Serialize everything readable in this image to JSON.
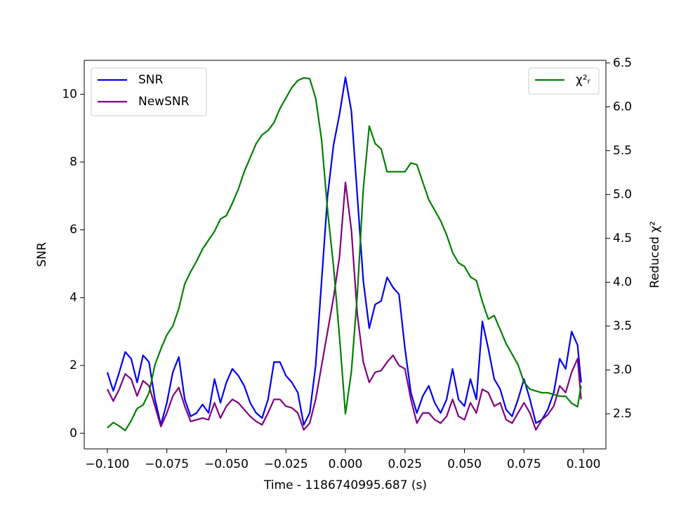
{
  "chart_data": {
    "type": "line",
    "xlabel": "Time - 1186740995.687 (s)",
    "ylabel": "SNR",
    "y2label": "Reduced χ²",
    "x": [
      -0.1,
      -0.0975,
      -0.095,
      -0.0925,
      -0.09,
      -0.0875,
      -0.085,
      -0.0825,
      -0.08,
      -0.0775,
      -0.075,
      -0.0725,
      -0.07,
      -0.0675,
      -0.065,
      -0.0625,
      -0.06,
      -0.0575,
      -0.055,
      -0.0525,
      -0.05,
      -0.0475,
      -0.045,
      -0.0425,
      -0.04,
      -0.0375,
      -0.035,
      -0.0325,
      -0.03,
      -0.0275,
      -0.025,
      -0.0225,
      -0.02,
      -0.0175,
      -0.015,
      -0.0125,
      -0.01,
      -0.0075,
      -0.005,
      -0.0025,
      0,
      0.0025,
      0.005,
      0.0075,
      0.01,
      0.0125,
      0.015,
      0.0175,
      0.02,
      0.0225,
      0.025,
      0.0275,
      0.03,
      0.0325,
      0.035,
      0.0375,
      0.04,
      0.0425,
      0.045,
      0.0475,
      0.05,
      0.0525,
      0.055,
      0.0575,
      0.06,
      0.0625,
      0.065,
      0.0675,
      0.07,
      0.0725,
      0.075,
      0.0775,
      0.08,
      0.0825,
      0.085,
      0.0875,
      0.09,
      0.0925,
      0.095,
      0.0975,
      0.099
    ],
    "series": [
      {
        "name": "SNR",
        "color": "#0000ee",
        "axis": "y",
        "values": [
          1.8,
          1.25,
          1.8,
          2.4,
          2.2,
          1.5,
          2.3,
          2.1,
          1.0,
          0.25,
          0.9,
          1.8,
          2.25,
          1.0,
          0.5,
          0.6,
          0.85,
          0.6,
          1.6,
          0.9,
          1.5,
          1.9,
          1.7,
          1.4,
          0.9,
          0.6,
          0.45,
          1.0,
          2.1,
          2.1,
          1.7,
          1.5,
          1.2,
          0.25,
          0.6,
          2.0,
          4.5,
          7.0,
          8.5,
          9.4,
          10.5,
          9.5,
          7.0,
          4.5,
          3.1,
          3.8,
          3.9,
          4.6,
          4.3,
          4.1,
          2.5,
          1.2,
          0.6,
          1.1,
          1.4,
          0.9,
          0.6,
          1.0,
          1.9,
          1.0,
          0.8,
          1.6,
          1.0,
          3.3,
          2.5,
          1.6,
          1.3,
          0.7,
          0.5,
          1.0,
          1.6,
          1.0,
          0.3,
          0.4,
          0.7,
          1.2,
          2.2,
          1.9,
          3.0,
          2.6,
          1.5
        ]
      },
      {
        "name": "NewSNR",
        "color": "#800080",
        "axis": "y",
        "values": [
          1.3,
          0.95,
          1.3,
          1.75,
          1.6,
          1.1,
          1.55,
          1.4,
          0.8,
          0.2,
          0.6,
          1.1,
          1.35,
          0.8,
          0.35,
          0.4,
          0.45,
          0.4,
          0.9,
          0.45,
          0.8,
          1.0,
          0.9,
          0.7,
          0.5,
          0.35,
          0.25,
          0.6,
          1.0,
          1.0,
          0.8,
          0.75,
          0.6,
          0.1,
          0.3,
          1.0,
          2.0,
          3.0,
          4.0,
          5.2,
          7.4,
          6.0,
          3.5,
          2.1,
          1.5,
          1.8,
          1.85,
          2.1,
          2.3,
          2.0,
          1.9,
          1.0,
          0.3,
          0.6,
          0.6,
          0.4,
          0.3,
          0.5,
          1.0,
          0.5,
          0.4,
          0.9,
          0.6,
          1.3,
          1.2,
          0.8,
          0.9,
          0.4,
          0.3,
          0.6,
          0.9,
          0.6,
          0.1,
          0.4,
          0.55,
          0.8,
          1.4,
          1.2,
          1.8,
          2.2,
          1.0
        ]
      },
      {
        "name": "χ²ᵣ",
        "color": "#008000",
        "axis": "y2",
        "values": [
          2.34,
          2.4,
          2.36,
          2.31,
          2.42,
          2.56,
          2.6,
          2.74,
          3.06,
          3.24,
          3.4,
          3.5,
          3.7,
          3.98,
          4.12,
          4.24,
          4.38,
          4.48,
          4.58,
          4.72,
          4.76,
          4.9,
          5.06,
          5.26,
          5.42,
          5.58,
          5.68,
          5.73,
          5.82,
          5.98,
          6.1,
          6.22,
          6.3,
          6.33,
          6.32,
          6.1,
          5.62,
          4.82,
          4.18,
          3.38,
          2.5,
          2.98,
          3.86,
          5.06,
          5.78,
          5.58,
          5.52,
          5.26,
          5.26,
          5.26,
          5.26,
          5.36,
          5.34,
          5.14,
          4.94,
          4.82,
          4.7,
          4.54,
          4.34,
          4.22,
          4.18,
          4.06,
          4.02,
          3.78,
          3.58,
          3.62,
          3.46,
          3.3,
          3.18,
          3.06,
          2.86,
          2.78,
          2.76,
          2.74,
          2.74,
          2.72,
          2.7,
          2.7,
          2.62,
          2.58,
          2.82
        ]
      }
    ],
    "xlim": [
      -0.1097,
      0.1094
    ],
    "ylim": [
      -0.46,
      11.0
    ],
    "y2lim": [
      2.1,
      6.53
    ],
    "xticks": [
      {
        "value": -0.1,
        "label": "−0.100"
      },
      {
        "value": -0.075,
        "label": "−0.075"
      },
      {
        "value": -0.05,
        "label": "−0.050"
      },
      {
        "value": -0.025,
        "label": "−0.025"
      },
      {
        "value": 0,
        "label": "0.000"
      },
      {
        "value": 0.025,
        "label": "0.025"
      },
      {
        "value": 0.05,
        "label": "0.050"
      },
      {
        "value": 0.075,
        "label": "0.075"
      },
      {
        "value": 0.1,
        "label": "0.100"
      }
    ],
    "yticks": [
      0,
      2,
      4,
      6,
      8,
      10
    ],
    "y2ticks": [
      2.5,
      {
        "value": 3,
        "label": "3.0"
      },
      3.5,
      {
        "value": 4,
        "label": "4.0"
      },
      4.5,
      {
        "value": 5,
        "label": "5.0"
      },
      5.5,
      {
        "value": 6,
        "label": "6.0"
      },
      6.5
    ],
    "legend": {
      "y": "upper left",
      "y2": "upper right"
    },
    "grid": false
  }
}
